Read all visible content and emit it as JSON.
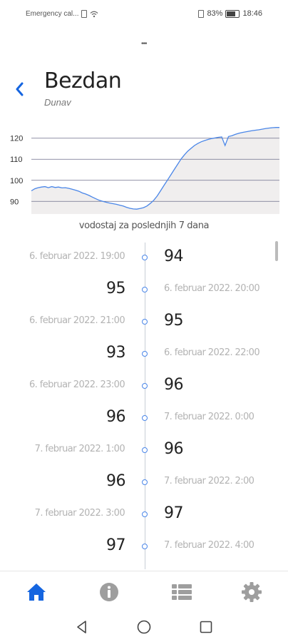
{
  "status_bar": {
    "carrier": "Emergency cal...",
    "battery": "83%",
    "time": "18:46"
  },
  "header": {
    "title": "Bezdan",
    "subtitle": "Dunav"
  },
  "chart_data": {
    "type": "area",
    "title": "",
    "xlabel": "",
    "ylabel": "",
    "yticks": [
      90,
      100,
      110,
      120
    ],
    "ylim": [
      84,
      126
    ],
    "grid": true,
    "color": "#4a86e8",
    "fill": "#f0eeee",
    "series": [
      {
        "values": [
          95,
          96,
          96.5,
          96.8,
          97,
          96.5,
          97,
          96.6,
          96.8,
          96.4,
          96.5,
          96.2,
          95.8,
          95.3,
          94.8,
          94,
          93.5,
          92.8,
          92,
          91.2,
          90.5,
          90,
          89.6,
          89.2,
          88.9,
          88.6,
          88.2,
          87.8,
          87.2,
          86.7,
          86.4,
          86.3,
          86.6,
          87,
          87.8,
          89,
          90.5,
          92.5,
          95,
          97.5,
          100,
          102.5,
          105,
          107.5,
          110,
          112,
          113.8,
          115.2,
          116.5,
          117.5,
          118.3,
          118.9,
          119.4,
          119.8,
          120.1,
          120.4,
          120.6,
          116.5,
          120.8,
          121.2,
          121.8,
          122.3,
          122.7,
          123,
          123.3,
          123.6,
          123.8,
          124,
          124.3,
          124.6,
          124.8,
          125,
          125.1,
          125.1
        ]
      }
    ],
    "caption": "vodostaj za poslednjih 7 dana"
  },
  "timeline": [
    {
      "timestamp": "6. februar 2022. 19:00",
      "value": "94"
    },
    {
      "timestamp": "6. februar 2022. 20:00",
      "value": "95"
    },
    {
      "timestamp": "6. februar 2022. 21:00",
      "value": "95"
    },
    {
      "timestamp": "6. februar 2022. 22:00",
      "value": "93"
    },
    {
      "timestamp": "6. februar 2022. 23:00",
      "value": "96"
    },
    {
      "timestamp": "7. februar 2022. 0:00",
      "value": "96"
    },
    {
      "timestamp": "7. februar 2022. 1:00",
      "value": "96"
    },
    {
      "timestamp": "7. februar 2022. 2:00",
      "value": "96"
    },
    {
      "timestamp": "7. februar 2022. 3:00",
      "value": "97"
    },
    {
      "timestamp": "7. februar 2022. 4:00",
      "value": "97"
    }
  ],
  "nav": {
    "accent": "#1565e0",
    "inactive": "#9e9e9e",
    "items": [
      {
        "icon": "home-icon",
        "active": true
      },
      {
        "icon": "info-icon",
        "active": false
      },
      {
        "icon": "list-icon",
        "active": false
      },
      {
        "icon": "gear-icon",
        "active": false
      }
    ]
  }
}
